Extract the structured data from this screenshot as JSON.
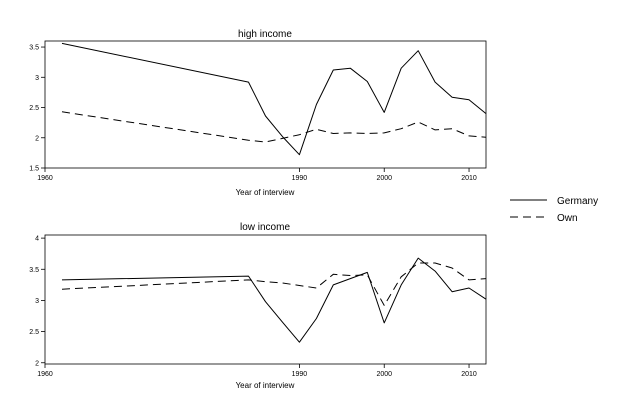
{
  "chart_data": [
    {
      "type": "line",
      "title": "high income",
      "xlabel": "Year of interview",
      "ylabel": "",
      "xlim": [
        1960,
        2012
      ],
      "ylim": [
        1.5,
        3.6
      ],
      "xticks": [
        1960,
        1990,
        2000,
        2010
      ],
      "yticks": [
        1.5,
        2,
        2.5,
        3,
        3.5
      ],
      "ytick_labels": [
        "1.5",
        "2",
        "2.5",
        "3",
        "3.5"
      ],
      "grid": false,
      "series": [
        {
          "name": "Germany",
          "dash": "solid",
          "x": [
            1962,
            1984,
            1986,
            1988,
            1990,
            1992,
            1994,
            1996,
            1998,
            2000,
            2002,
            2004,
            2006,
            2008,
            2010,
            2012
          ],
          "y": [
            3.56,
            2.92,
            2.36,
            2.02,
            1.72,
            2.55,
            3.12,
            3.15,
            2.93,
            2.42,
            3.15,
            3.44,
            2.92,
            2.67,
            2.63,
            2.4
          ]
        },
        {
          "name": "Own",
          "dash": "dashed",
          "x": [
            1962,
            1984,
            1986,
            1988,
            1990,
            1992,
            1994,
            1996,
            1998,
            2000,
            2002,
            2004,
            2006,
            2008,
            2010,
            2012
          ],
          "y": [
            2.43,
            1.96,
            1.93,
            1.99,
            2.05,
            2.14,
            2.07,
            2.08,
            2.07,
            2.08,
            2.15,
            2.26,
            2.13,
            2.15,
            2.03,
            2.01
          ]
        }
      ]
    },
    {
      "type": "line",
      "title": "low income",
      "xlabel": "Year of interview",
      "ylabel": "",
      "xlim": [
        1960,
        2012
      ],
      "ylim": [
        1.98,
        4.05
      ],
      "xticks": [
        1960,
        1990,
        2000,
        2010
      ],
      "yticks": [
        2,
        2.5,
        3,
        3.5,
        4
      ],
      "ytick_labels": [
        "2",
        "2.5",
        "3",
        "3.5",
        "4"
      ],
      "grid": false,
      "series": [
        {
          "name": "Germany",
          "dash": "solid",
          "x": [
            1962,
            1984,
            1986,
            1988,
            1990,
            1992,
            1994,
            1996,
            1998,
            2000,
            2002,
            2004,
            2006,
            2008,
            2010,
            2012
          ],
          "y": [
            3.33,
            3.39,
            2.98,
            2.65,
            2.33,
            2.71,
            3.25,
            3.35,
            3.45,
            2.64,
            3.25,
            3.68,
            3.47,
            3.14,
            3.2,
            3.02
          ]
        },
        {
          "name": "Own",
          "dash": "dashed",
          "x": [
            1962,
            1984,
            1986,
            1988,
            1990,
            1992,
            1994,
            1996,
            1998,
            2000,
            2002,
            2004,
            2006,
            2008,
            2010,
            2012
          ],
          "y": [
            3.18,
            3.33,
            3.3,
            3.28,
            3.24,
            3.2,
            3.42,
            3.4,
            3.41,
            2.92,
            3.38,
            3.6,
            3.6,
            3.52,
            3.33,
            3.35
          ]
        }
      ]
    }
  ],
  "legend": {
    "items": [
      {
        "label": "Germany",
        "dash": "solid"
      },
      {
        "label": "Own",
        "dash": "dashed"
      }
    ],
    "placement": "right"
  }
}
